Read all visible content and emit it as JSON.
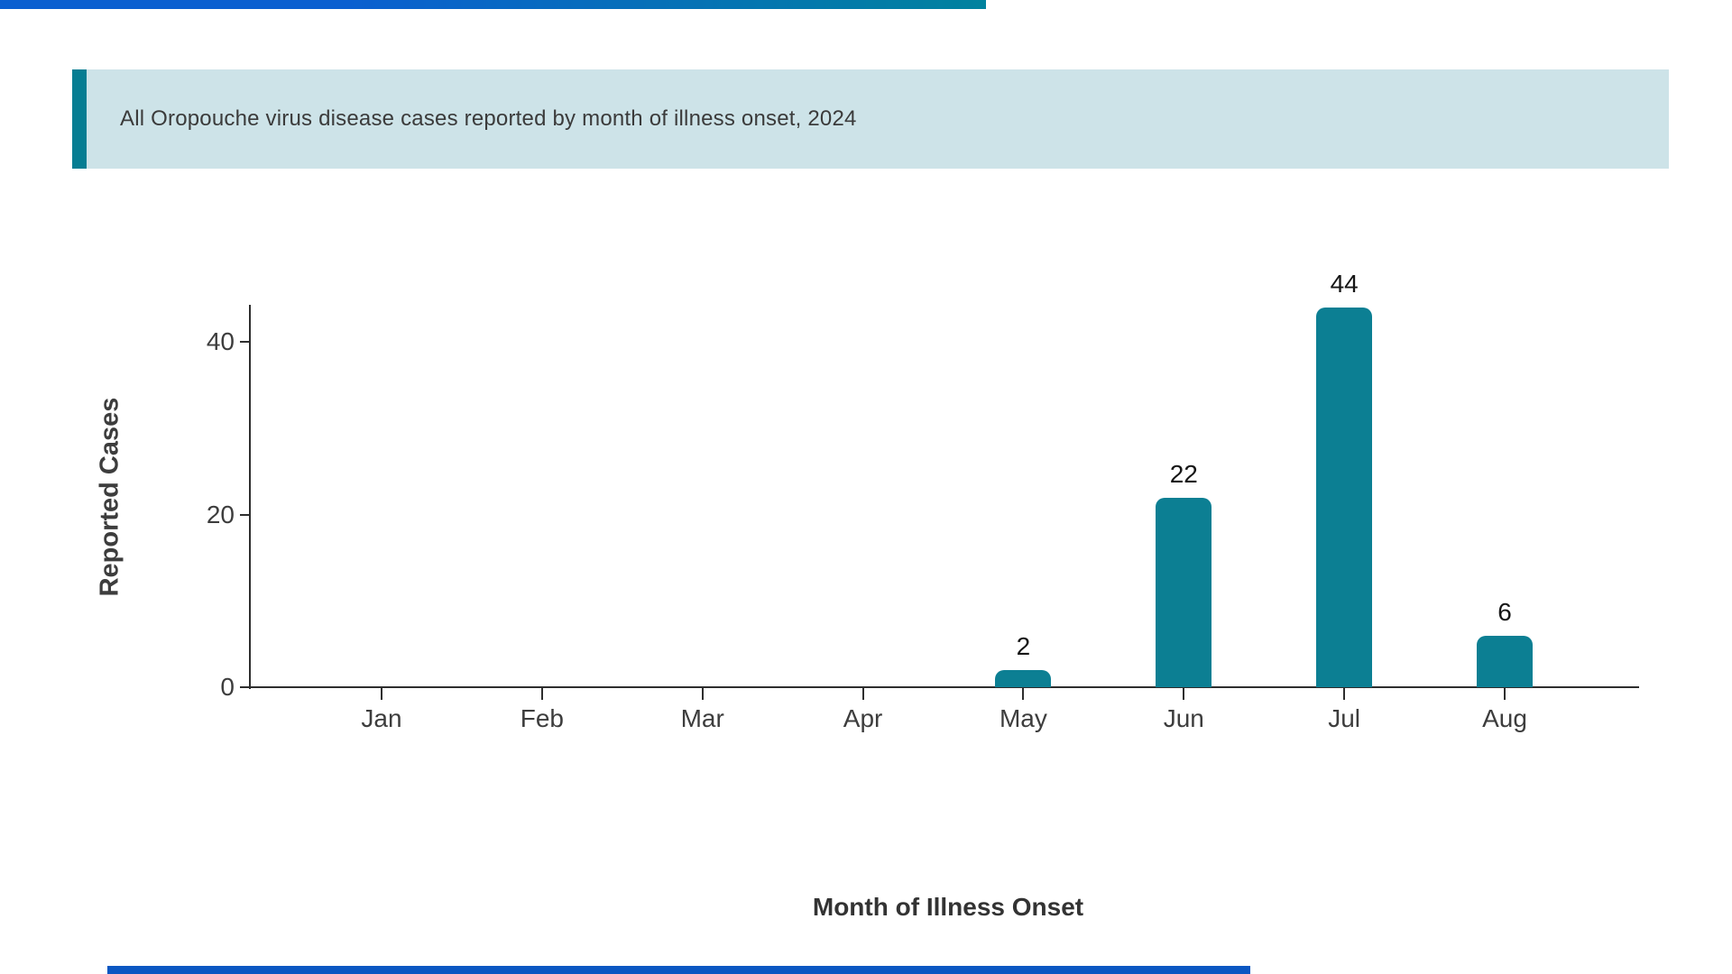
{
  "header": {
    "title": "All Oropouche virus disease cases reported by month of illness onset, 2024"
  },
  "chart_data": {
    "type": "bar",
    "categories": [
      "Jan",
      "Feb",
      "Mar",
      "Apr",
      "May",
      "Jun",
      "Jul",
      "Aug"
    ],
    "values": [
      0,
      0,
      0,
      0,
      2,
      22,
      44,
      6
    ],
    "title": "All Oropouche virus disease cases reported by month of illness onset, 2024",
    "xlabel": "Month of Illness Onset",
    "ylabel": "Reported Cases",
    "ylim": [
      0,
      44
    ],
    "yticks": [
      0,
      20,
      40
    ],
    "grid": "off",
    "legend": "none",
    "value_labels": [
      null,
      null,
      null,
      null,
      "2",
      "22",
      "44",
      "6"
    ]
  },
  "colors": {
    "top_bar_gradient_left": "#0b5fd0",
    "top_bar_gradient_right": "#00829e",
    "header_accent": "#067d92",
    "header_background": "#cde3e8",
    "bar": "#0c7f93",
    "axis_line": "#2e2e2e",
    "tick_text": "#3d3d3d",
    "value_text": "#161616",
    "bottom_bar": "#0b57c2"
  }
}
